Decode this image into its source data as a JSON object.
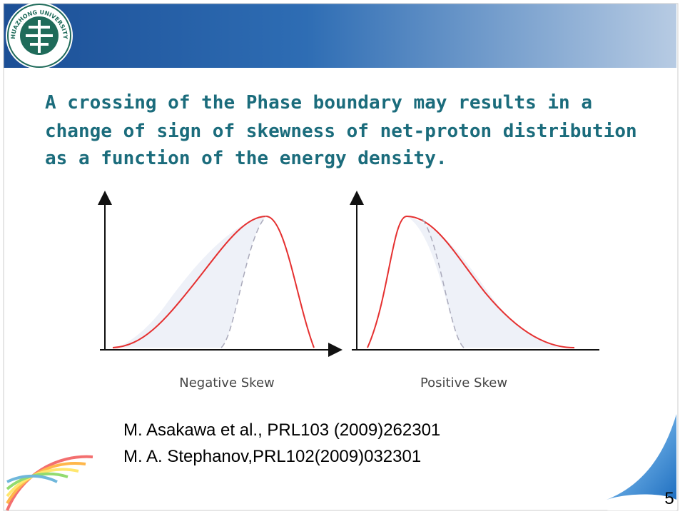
{
  "logo": {
    "text": "HUAZHONG UNIVERSITY"
  },
  "body": {
    "lines": [
      "A crossing of the Phase boundary may results in a",
      "change of sign of skewness of net-proton distribution",
      "as a function of the energy density."
    ]
  },
  "figure": {
    "labels": [
      "Negative Skew",
      "Positive Skew"
    ]
  },
  "references": [
    "M. Asakawa et al., PRL103 (2009)262301",
    "M. A. Stephanov,PRL102(2009)032301"
  ],
  "page_number": "5"
}
